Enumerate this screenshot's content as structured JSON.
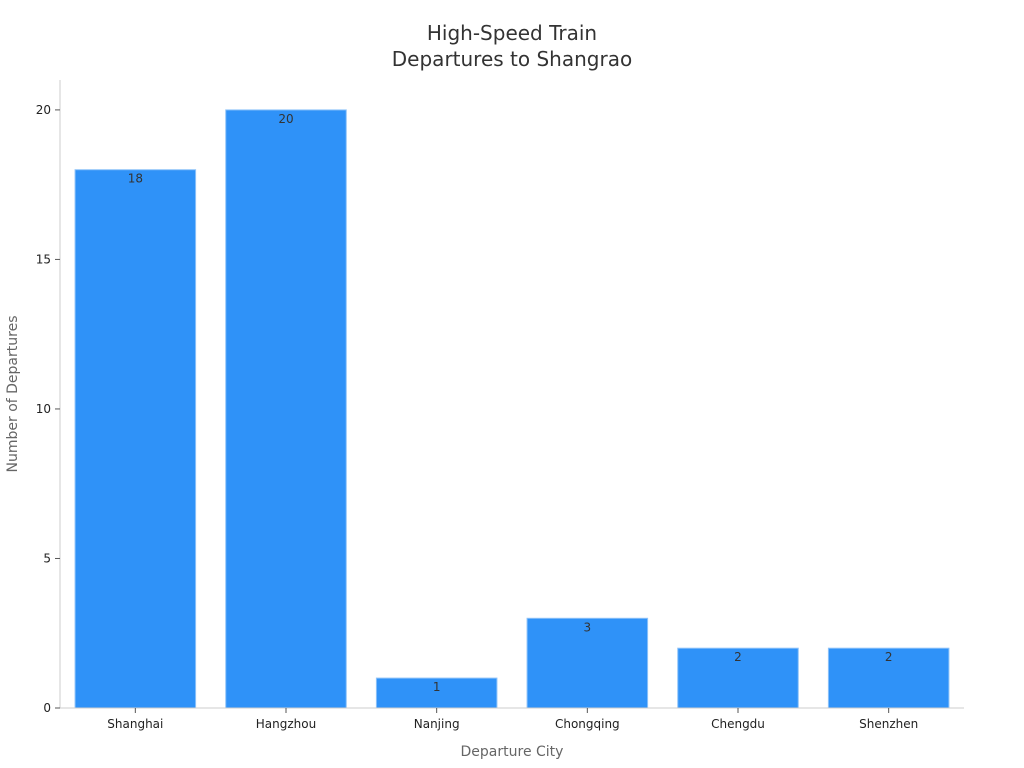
{
  "chart_data": {
    "type": "bar",
    "title_lines": [
      "High-Speed Train",
      "Departures to Shangrao"
    ],
    "xlabel": "Departure City",
    "ylabel": "Number of Departures",
    "categories": [
      "Shanghai",
      "Hangzhou",
      "Nanjing",
      "Chongqing",
      "Chengdu",
      "Shenzhen"
    ],
    "values": [
      18,
      20,
      1,
      3,
      2,
      2
    ],
    "ylim": [
      0,
      21
    ],
    "yticks": [
      0,
      5,
      10,
      15,
      20
    ],
    "grid": false,
    "bar_color": "#2f92f8",
    "bar_edge_color": "#8fc3f9",
    "data_labels": true
  }
}
